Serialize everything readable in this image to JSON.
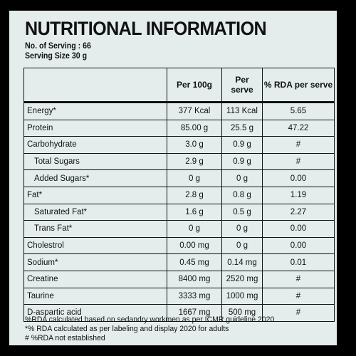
{
  "title": "NUTRITIONAL INFORMATION",
  "servings_line": "No. of Serving : 66",
  "serving_size_line": "Serving Size 30 g",
  "table": {
    "headers": [
      "",
      "Per 100g",
      "Per serve",
      "% RDA per serve"
    ],
    "rows": [
      {
        "name": "Energy*",
        "per100": "377 Kcal",
        "perserve": "113 Kcal",
        "rda": "5.65",
        "indent": false
      },
      {
        "name": "Protein",
        "per100": "85.00 g",
        "perserve": "25.5 g",
        "rda": "47.22",
        "indent": false
      },
      {
        "name": "Carbohydrate",
        "per100": "3.0 g",
        "perserve": "0.9 g",
        "rda": "#",
        "indent": false
      },
      {
        "name": "Total Sugars",
        "per100": "2.9 g",
        "perserve": "0.9 g",
        "rda": "#",
        "indent": true
      },
      {
        "name": "Added Sugars*",
        "per100": "0 g",
        "perserve": "0 g",
        "rda": "0.00",
        "indent": true
      },
      {
        "name": "Fat*",
        "per100": "2.8 g",
        "perserve": "0.8 g",
        "rda": "1.19",
        "indent": false
      },
      {
        "name": "Saturated Fat*",
        "per100": "1.6 g",
        "perserve": "0.5 g",
        "rda": "2.27",
        "indent": true
      },
      {
        "name": "Trans Fat*",
        "per100": "0 g",
        "perserve": "0 g",
        "rda": "0.00",
        "indent": true
      },
      {
        "name": "Cholestrol",
        "per100": "0.00 mg",
        "perserve": "0 g",
        "rda": "0.00",
        "indent": false
      },
      {
        "name": "Sodium*",
        "per100": "0.45 mg",
        "perserve": "0.14 mg",
        "rda": "0.01",
        "indent": false
      },
      {
        "name": "Creatine",
        "per100": "8400 mg",
        "perserve": "2520 mg",
        "rda": "#",
        "indent": false
      },
      {
        "name": "Taurine",
        "per100": "3333 mg",
        "perserve": "1000 mg",
        "rda": "#",
        "indent": false
      },
      {
        "name": "D-aspartic acid",
        "per100": "1667 mg",
        "perserve": "500 mg",
        "rda": "#",
        "indent": false
      }
    ]
  },
  "footnotes": [
    "%RDA calculated based on sedandry workmen as per ICMR guideline 2020",
    "*% RDA calculated as per labeling and display 2020 for adults",
    "# %RDA not established"
  ]
}
